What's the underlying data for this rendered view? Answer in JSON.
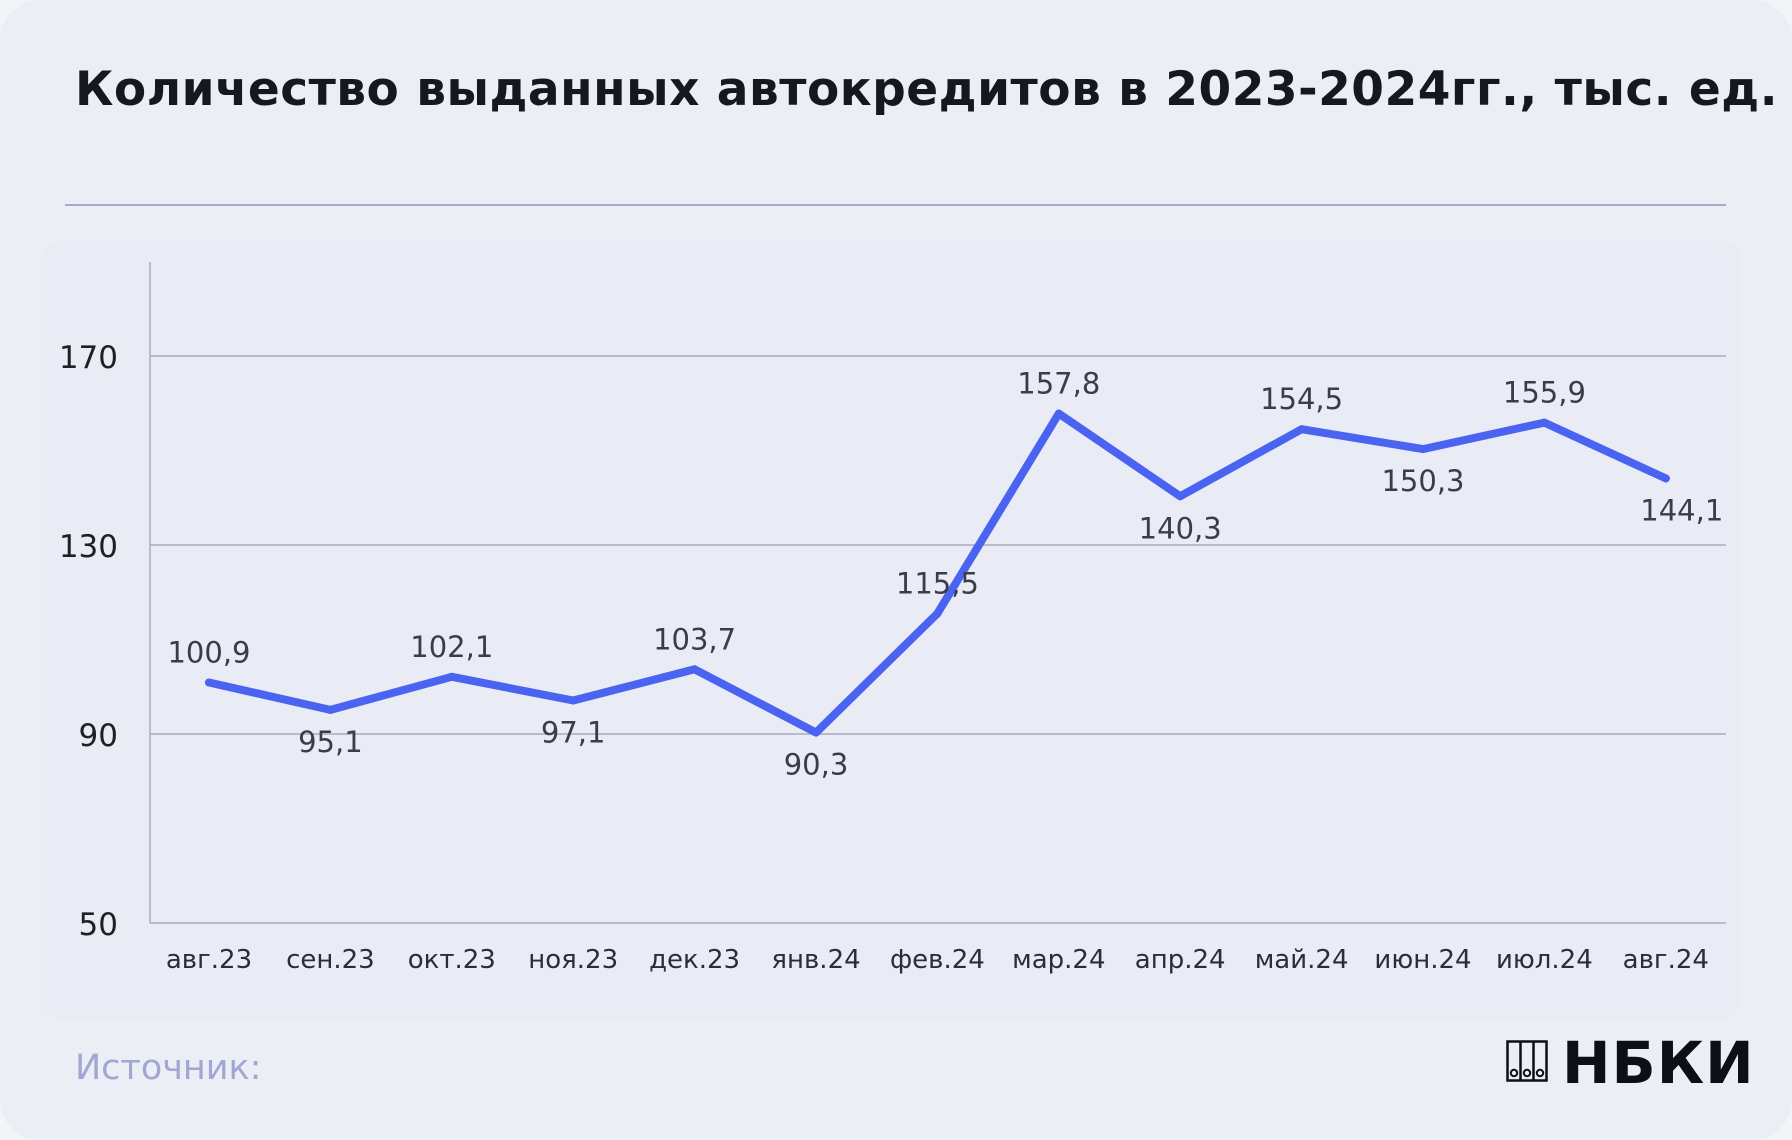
{
  "title": "Количество выданных автокредитов в 2023-2024гг., тыс. ед.",
  "footer": {
    "source_label": "Источник:",
    "logo_text": "НБКИ"
  },
  "colors": {
    "line": "#4a63f1",
    "grid": "#a8abc4",
    "text": "#3a3d48",
    "background": "#eceef6"
  },
  "chart_data": {
    "type": "line",
    "title": "Количество выданных автокредитов в 2023-2024гг., тыс. ед.",
    "xlabel": "",
    "ylabel": "",
    "categories": [
      "авг.23",
      "сен.23",
      "окт.23",
      "ноя.23",
      "дек.23",
      "янв.24",
      "фев.24",
      "мар.24",
      "апр.24",
      "май.24",
      "июн.24",
      "июл.24",
      "авг.24"
    ],
    "series": [
      {
        "values": [
          100.9,
          95.1,
          102.1,
          97.1,
          103.7,
          90.3,
          115.5,
          157.8,
          140.3,
          154.5,
          150.3,
          155.9,
          144.1
        ],
        "labels": [
          "100,9",
          "95,1",
          "102,1",
          "97,1",
          "103,7",
          "90,3",
          "115,5",
          "157,8",
          "140,3",
          "154,5",
          "150,3",
          "155,9",
          "144,1"
        ]
      }
    ],
    "ylim": [
      50,
      170
    ],
    "yticks": [
      50,
      90,
      130,
      170
    ],
    "ytick_labels": [
      "50",
      "90",
      "130",
      "170"
    ],
    "grid": true,
    "legend": "none"
  }
}
